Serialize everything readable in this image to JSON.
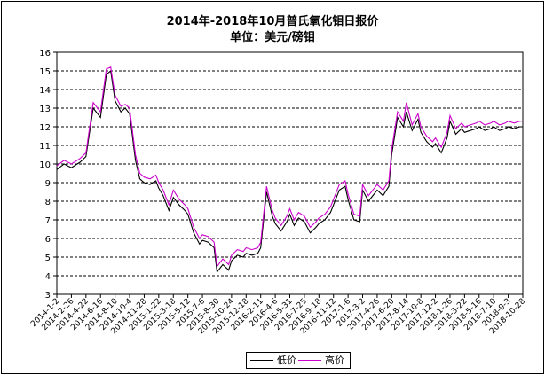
{
  "title_line1": "2014年-2018年10月普氏氧化钼日报价",
  "title_line2": "单位：美元/磅钼",
  "colors": {
    "low": "#000000",
    "high": "#cc00cc",
    "grid": "#000000",
    "axis": "#000000"
  },
  "chart_data": {
    "type": "line",
    "title": "2014年-2018年10月普氏氧化钼日报价",
    "subtitle": "单位：美元/磅钼",
    "xlabel": "",
    "ylabel": "",
    "ylim": [
      3,
      16
    ],
    "yticks": [
      3,
      4,
      5,
      6,
      7,
      8,
      9,
      10,
      11,
      12,
      13,
      14,
      15,
      16
    ],
    "grid": "horizontal dashed",
    "legend_position": "bottom",
    "x_ticks": [
      "2014-1-2",
      "2014-2-26",
      "2014-4-22",
      "2014-6-16",
      "2014-8-10",
      "2014-10-4",
      "2014-11-28",
      "2015-1-22",
      "2015-3-18",
      "2015-5-12",
      "2015-7-6",
      "2015-8-30",
      "2015-10-24",
      "2015-12-18",
      "2016-2-11",
      "2016-4-6",
      "2016-5-31",
      "2016-7-25",
      "2016-9-18",
      "2016-11-12",
      "2017-1-6",
      "2017-3-2",
      "2017-4-26",
      "2017-6-20",
      "2017-8-14",
      "2017-10-8",
      "2017-12-2",
      "2018-1-26",
      "2018-3-22",
      "2018-5-16",
      "2018-7-10",
      "2018-9-3",
      "2018-10-28"
    ],
    "series": [
      {
        "name": "低价",
        "key": "low",
        "x": [
          0,
          0.5,
          1,
          1.6,
          2,
          2.5,
          3,
          3.4,
          3.7,
          4,
          4.4,
          4.7,
          5,
          5.4,
          5.7,
          6,
          6.4,
          6.8,
          7,
          7.3,
          7.7,
          8,
          8.4,
          8.8,
          9,
          9.4,
          9.8,
          10,
          10.4,
          10.8,
          11,
          11.4,
          11.8,
          12,
          12.4,
          12.8,
          13,
          13.4,
          13.8,
          14,
          14.4,
          14.8,
          15,
          15.4,
          15.8,
          16,
          16.3,
          16.6,
          17,
          17.4,
          17.8,
          18,
          18.4,
          18.8,
          19,
          19.4,
          19.8,
          20,
          20.4,
          20.8,
          21,
          21.4,
          21.8,
          22,
          22.4,
          22.8,
          23,
          23.4,
          23.8,
          24,
          24.4,
          24.8,
          25,
          25.4,
          25.8,
          26,
          26.4,
          26.8,
          27,
          27.4,
          27.8,
          28,
          28.4,
          28.8,
          29,
          29.4,
          29.8,
          30,
          30.4,
          30.8,
          31,
          31.4,
          31.8,
          32
        ],
        "values": [
          9.7,
          10.0,
          9.8,
          10.1,
          10.4,
          13.0,
          12.5,
          14.8,
          15.0,
          13.4,
          12.8,
          13.0,
          12.7,
          10.2,
          9.2,
          9.0,
          8.9,
          9.1,
          8.7,
          8.3,
          7.5,
          8.2,
          7.8,
          7.5,
          7.3,
          6.3,
          5.7,
          5.9,
          5.8,
          5.5,
          4.2,
          4.6,
          4.3,
          4.8,
          5.1,
          5.0,
          5.2,
          5.1,
          5.2,
          5.5,
          8.5,
          7.2,
          6.8,
          6.4,
          6.9,
          7.3,
          6.7,
          7.1,
          6.9,
          6.3,
          6.6,
          6.8,
          7.0,
          7.4,
          7.8,
          8.6,
          8.8,
          8.1,
          7.0,
          6.9,
          8.6,
          8.0,
          8.4,
          8.6,
          8.3,
          8.8,
          10.5,
          12.5,
          12.0,
          12.8,
          11.8,
          12.4,
          11.7,
          11.2,
          10.9,
          11.1,
          10.6,
          11.4,
          12.3,
          11.6,
          11.9,
          11.7,
          11.8,
          11.9,
          12.0,
          11.8,
          11.9,
          12.0,
          11.8,
          11.9,
          12.0,
          11.9,
          12.0,
          12.0
        ]
      },
      {
        "name": "高价",
        "key": "high",
        "x": [
          0,
          0.5,
          1,
          1.6,
          2,
          2.5,
          3,
          3.4,
          3.7,
          4,
          4.4,
          4.7,
          5,
          5.4,
          5.7,
          6,
          6.4,
          6.8,
          7,
          7.3,
          7.7,
          8,
          8.4,
          8.8,
          9,
          9.4,
          9.8,
          10,
          10.4,
          10.8,
          11,
          11.4,
          11.8,
          12,
          12.4,
          12.8,
          13,
          13.4,
          13.8,
          14,
          14.4,
          14.8,
          15,
          15.4,
          15.8,
          16,
          16.3,
          16.6,
          17,
          17.4,
          17.8,
          18,
          18.4,
          18.8,
          19,
          19.4,
          19.8,
          20,
          20.4,
          20.8,
          21,
          21.4,
          21.8,
          22,
          22.4,
          22.8,
          23,
          23.4,
          23.8,
          24,
          24.4,
          24.8,
          25,
          25.4,
          25.8,
          26,
          26.4,
          26.8,
          27,
          27.4,
          27.8,
          28,
          28.4,
          28.8,
          29,
          29.4,
          29.8,
          30,
          30.4,
          30.8,
          31,
          31.4,
          31.8,
          32
        ],
        "values": [
          9.9,
          10.2,
          10.0,
          10.3,
          10.6,
          13.3,
          12.8,
          15.1,
          15.2,
          13.7,
          13.1,
          13.2,
          13.0,
          10.5,
          9.5,
          9.3,
          9.2,
          9.4,
          9.0,
          8.6,
          7.8,
          8.6,
          8.1,
          7.8,
          7.6,
          6.6,
          6.0,
          6.2,
          6.1,
          5.8,
          4.5,
          4.9,
          4.6,
          5.1,
          5.4,
          5.3,
          5.5,
          5.4,
          5.5,
          5.8,
          8.8,
          7.5,
          7.1,
          6.7,
          7.2,
          7.6,
          7.0,
          7.4,
          7.2,
          6.6,
          6.9,
          7.1,
          7.3,
          7.7,
          8.1,
          8.9,
          9.1,
          8.4,
          7.3,
          7.2,
          8.9,
          8.3,
          8.7,
          8.9,
          8.6,
          9.1,
          10.8,
          12.8,
          12.3,
          13.3,
          12.1,
          12.7,
          12.0,
          11.5,
          11.2,
          11.4,
          10.9,
          11.7,
          12.6,
          11.9,
          12.2,
          12.0,
          12.1,
          12.2,
          12.3,
          12.1,
          12.2,
          12.3,
          12.1,
          12.2,
          12.3,
          12.2,
          12.3,
          12.3
        ]
      }
    ]
  }
}
